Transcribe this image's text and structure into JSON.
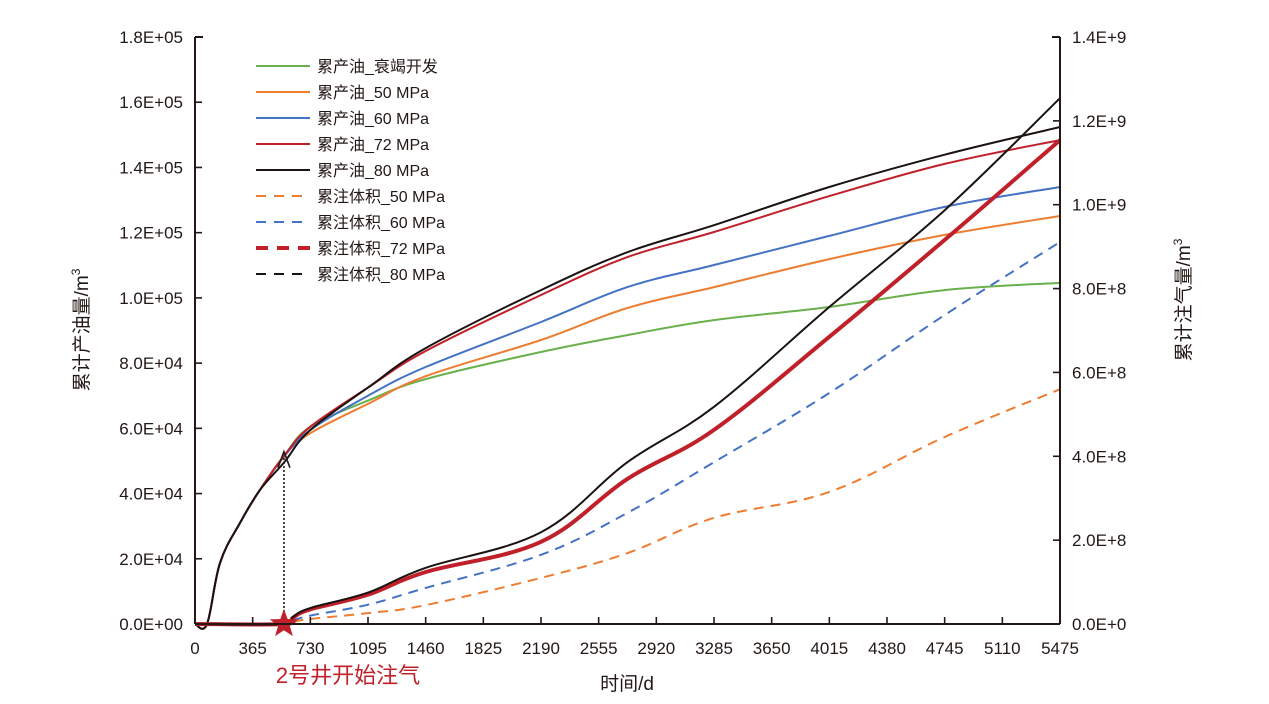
{
  "chart_data": {
    "type": "line",
    "title": "",
    "xlabel": "时间/d",
    "ylabel": "累计产油量/m³",
    "ylabel_right": "累计注气量/m³",
    "xlim": [
      0,
      5475
    ],
    "ylim": [
      0,
      180000
    ],
    "ylim_right": [
      0,
      1400000000
    ],
    "grid": false,
    "legend_position": "top-left",
    "x_ticks": [
      0,
      365,
      730,
      1095,
      1460,
      1825,
      2190,
      2555,
      2920,
      3285,
      3650,
      4015,
      4380,
      4745,
      5110,
      5475
    ],
    "x_tick_labels": [
      "0",
      "365",
      "730",
      "1095",
      "1460",
      "1825",
      "2190",
      "2555",
      "2920",
      "3285",
      "3650",
      "4015",
      "4380",
      "4745",
      "5110",
      "5475"
    ],
    "y_ticks": [
      0,
      20000,
      40000,
      60000,
      80000,
      100000,
      120000,
      140000,
      160000,
      180000
    ],
    "y_tick_labels": [
      "0.0E+00",
      "2.0E+04",
      "4.0E+04",
      "6.0E+04",
      "8.0E+04",
      "1.0E+05",
      "1.2E+05",
      "1.4E+05",
      "1.6E+05",
      "1.8E+05"
    ],
    "y_right_ticks": [
      0,
      200000000,
      400000000,
      600000000,
      800000000,
      1000000000,
      1200000000,
      1400000000
    ],
    "y_right_tick_labels": [
      "0.0E+0",
      "2.0E+8",
      "4.0E+8",
      "6.0E+8",
      "8.0E+8",
      "1.0E+9",
      "1.2E+9",
      "1.4E+9"
    ],
    "series": [
      {
        "name": "累产油_衰竭开发",
        "axis": "left",
        "color": "#6ab04c",
        "style": "solid",
        "width": 2,
        "x": [
          0,
          76,
          158,
          285,
          411,
          563,
          730,
          1095,
          1460,
          2190,
          2737,
          3285,
          4015,
          4745,
          5475
        ],
        "y": [
          0,
          0,
          18700,
          31000,
          41100,
          51500,
          60500,
          68500,
          75100,
          83400,
          88600,
          93200,
          97200,
          102400,
          104600
        ]
      },
      {
        "name": "累产油_50 MPa",
        "axis": "left",
        "color": "#ed7d31",
        "style": "solid",
        "width": 2,
        "x": [
          0,
          76,
          158,
          285,
          411,
          563,
          730,
          1095,
          1460,
          2190,
          2737,
          3285,
          4015,
          4745,
          5475
        ],
        "y": [
          0,
          0,
          18700,
          31000,
          41100,
          51500,
          58500,
          67500,
          76000,
          87100,
          96900,
          103300,
          111900,
          119300,
          125100
        ]
      },
      {
        "name": "累产油_60 MPa",
        "axis": "left",
        "color": "#4472c4",
        "style": "solid",
        "width": 2,
        "x": [
          0,
          76,
          158,
          285,
          411,
          563,
          730,
          1095,
          1460,
          2190,
          2737,
          3285,
          4015,
          4745,
          5475
        ],
        "y": [
          0,
          0,
          18700,
          31000,
          41100,
          51300,
          59500,
          70000,
          78800,
          92600,
          103300,
          110100,
          119000,
          127900,
          134000
        ]
      },
      {
        "name": "累产油_72 MPa",
        "axis": "left",
        "color": "#c0202a",
        "style": "solid",
        "width": 2,
        "x": [
          0,
          76,
          158,
          285,
          411,
          563,
          730,
          1095,
          1460,
          2190,
          2737,
          3285,
          4015,
          4745,
          5475
        ],
        "y": [
          0,
          0,
          18700,
          31000,
          41100,
          51500,
          60500,
          72500,
          83700,
          100900,
          112500,
          120200,
          131200,
          141100,
          148400
        ]
      },
      {
        "name": "累产油_80 MPa",
        "axis": "left",
        "color": "#1a1311",
        "style": "solid",
        "width": 2,
        "x": [
          0,
          76,
          158,
          285,
          411,
          563,
          730,
          1095,
          1460,
          2190,
          2737,
          3285,
          4015,
          4745,
          5475
        ],
        "y": [
          0,
          0,
          18700,
          31000,
          41100,
          49500,
          59500,
          72500,
          84600,
          102400,
          114000,
          122300,
          134000,
          143900,
          152400
        ]
      },
      {
        "name": "累注体积_50 MPa",
        "axis": "right",
        "color": "#ed7d31",
        "style": "dashed",
        "width": 2,
        "x": [
          0,
          563,
          620,
          730,
          1095,
          1460,
          2190,
          2737,
          3285,
          4015,
          4745,
          5475
        ],
        "y": [
          0,
          0,
          5000000,
          12000000,
          26000000,
          45000000,
          110000000,
          169000000,
          253000000,
          315000000,
          446000000,
          560000000
        ]
      },
      {
        "name": "累注体积_60 MPa",
        "axis": "right",
        "color": "#4472c4",
        "style": "dashed",
        "width": 2,
        "x": [
          0,
          563,
          620,
          730,
          1095,
          1460,
          2190,
          2737,
          3285,
          4015,
          4745,
          5475
        ],
        "y": [
          0,
          0,
          8000000,
          20000000,
          46000000,
          86000000,
          165000000,
          265000000,
          386000000,
          551000000,
          737000000,
          911000000
        ]
      },
      {
        "name": "累注体积_72 MPa",
        "axis": "right",
        "color": "#c0202a",
        "style": "solid-thick",
        "width": 4,
        "x": [
          0,
          563,
          620,
          730,
          1095,
          1460,
          2190,
          2737,
          3285,
          4015,
          4745,
          5475
        ],
        "y": [
          0,
          0,
          15000000,
          35000000,
          70000000,
          124000000,
          196000000,
          346000000,
          463000000,
          685000000,
          916000000,
          1154000000
        ]
      },
      {
        "name": "累注体积_80 MPa",
        "axis": "right",
        "color": "#1a1311",
        "style": "solid",
        "width": 2,
        "x": [
          0,
          563,
          620,
          730,
          1095,
          1460,
          2190,
          2737,
          3285,
          4015,
          4745,
          5475
        ],
        "y": [
          0,
          0,
          17000000,
          38000000,
          75000000,
          134000000,
          219000000,
          386000000,
          518000000,
          756000000,
          987000000,
          1254000000
        ]
      }
    ],
    "legend_styles": [
      "solid",
      "solid",
      "solid",
      "solid",
      "solid",
      "dashed",
      "dashed",
      "dashed-thick",
      "dashed"
    ],
    "annotations": [
      {
        "type": "vertical-dotted-line",
        "x": 563,
        "y_from": 0,
        "y_to": 51000
      },
      {
        "type": "triangle-marker",
        "x": 563,
        "y": 51000
      },
      {
        "type": "star-marker",
        "x": 563,
        "y": 0,
        "color": "#c0202a"
      },
      {
        "type": "text",
        "text": "2号井开始注气",
        "x": 563,
        "color": "#c0202a"
      }
    ]
  }
}
